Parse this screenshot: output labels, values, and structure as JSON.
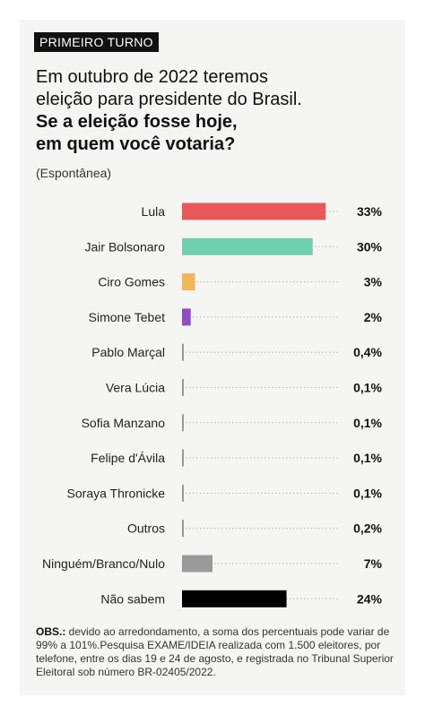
{
  "header": {
    "tag": "PRIMEIRO TURNO",
    "line1": "Em outubro de 2022 teremos",
    "line2": "eleição para presidente do Brasil.",
    "line3": "Se a eleição fosse hoje,",
    "line4": "em quem você votaria?",
    "subtitle": "(Espontânea)"
  },
  "colors": {
    "lula": "#e8585a",
    "bolsonaro": "#6fcfae",
    "ciro": "#f3b55c",
    "tebet": "#8e4ec6",
    "neutral": "#9a9a9a",
    "nao_sabem": "#000000"
  },
  "chart_data": {
    "type": "bar",
    "orientation": "horizontal",
    "categories": [
      "Lula",
      "Jair Bolsonaro",
      "Ciro Gomes",
      "Simone Tebet",
      "Pablo Marçal",
      "Vera Lúcia",
      "Sofia Manzano",
      "Felipe d'Ávila",
      "Soraya Thronicke",
      "Outros",
      "Ninguém/Branco/Nulo",
      "Não sabem"
    ],
    "values": [
      33,
      30,
      3,
      2,
      0.4,
      0.1,
      0.1,
      0.1,
      0.1,
      0.2,
      7,
      24
    ],
    "value_labels": [
      "33%",
      "30%",
      "3%",
      "2%",
      "0,4%",
      "0,1%",
      "0,1%",
      "0,1%",
      "0,1%",
      "0,2%",
      "7%",
      "24%"
    ],
    "bar_colors": [
      "#e8585a",
      "#6fcfae",
      "#f3b55c",
      "#8e4ec6",
      "#9a9a9a",
      "#9a9a9a",
      "#9a9a9a",
      "#9a9a9a",
      "#9a9a9a",
      "#9a9a9a",
      "#9a9a9a",
      "#000000"
    ],
    "xlim": [
      0,
      35
    ],
    "grid": "dotted guide lines per row"
  },
  "notes": {
    "label": "OBS.:",
    "text": " devido ao arredondamento, a soma dos percentuais pode variar de 99% a 101%.Pesquisa EXAME/IDEIA realizada com 1.500 eleitores, por telefone, entre os dias 19 e 24 de agosto, e registrada no Tribunal Superior Eleitoral sob número BR-02405/2022."
  }
}
